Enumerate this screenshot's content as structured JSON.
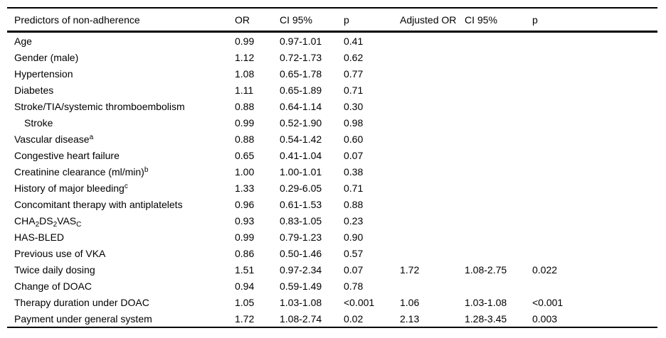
{
  "table": {
    "headers": [
      "Predictors of non-adherence",
      "OR",
      "CI 95%",
      "p",
      "Adjusted OR",
      "CI 95%",
      "p"
    ],
    "rows": [
      {
        "label": "Age",
        "or": "0.99",
        "ci": "0.97-1.01",
        "p": "0.41",
        "adj_or": "",
        "adj_ci": "",
        "adj_p": ""
      },
      {
        "label": "Gender (male)",
        "or": "1.12",
        "ci": "0.72-1.73",
        "p": "0.62",
        "adj_or": "",
        "adj_ci": "",
        "adj_p": ""
      },
      {
        "label": "Hypertension",
        "or": "1.08",
        "ci": "0.65-1.78",
        "p": "0.77",
        "adj_or": "",
        "adj_ci": "",
        "adj_p": ""
      },
      {
        "label": "Diabetes",
        "or": "1.11",
        "ci": "0.65-1.89",
        "p": "0.71",
        "adj_or": "",
        "adj_ci": "",
        "adj_p": ""
      },
      {
        "label": "Stroke/TIA/systemic thromboembolism",
        "or": "0.88",
        "ci": "0.64-1.14",
        "p": "0.30",
        "adj_or": "",
        "adj_ci": "",
        "adj_p": ""
      },
      {
        "label": "Stroke",
        "indent": true,
        "or": "0.99",
        "ci": "0.52-1.90",
        "p": "0.98",
        "adj_or": "",
        "adj_ci": "",
        "adj_p": ""
      },
      {
        "label_parts": [
          {
            "t": "Vascular disease"
          },
          {
            "sup": "a"
          }
        ],
        "or": "0.88",
        "ci": "0.54-1.42",
        "p": "0.60",
        "adj_or": "",
        "adj_ci": "",
        "adj_p": ""
      },
      {
        "label": "Congestive heart failure",
        "or": "0.65",
        "ci": "0.41-1.04",
        "p": "0.07",
        "adj_or": "",
        "adj_ci": "",
        "adj_p": ""
      },
      {
        "label_parts": [
          {
            "t": "Creatinine clearance (ml/min)"
          },
          {
            "sup": "b"
          }
        ],
        "or": "1.00",
        "ci": "1.00-1.01",
        "p": "0.38",
        "adj_or": "",
        "adj_ci": "",
        "adj_p": ""
      },
      {
        "label_parts": [
          {
            "t": "History of major bleeding"
          },
          {
            "sup": "c"
          }
        ],
        "or": "1.33",
        "ci": "0.29-6.05",
        "p": "0.71",
        "adj_or": "",
        "adj_ci": "",
        "adj_p": ""
      },
      {
        "label": "Concomitant therapy with antiplatelets",
        "or": "0.96",
        "ci": "0.61-1.53",
        "p": "0.88",
        "adj_or": "",
        "adj_ci": "",
        "adj_p": ""
      },
      {
        "label_parts": [
          {
            "t": "CHA"
          },
          {
            "sub": "2"
          },
          {
            "t": "DS"
          },
          {
            "sub": "2"
          },
          {
            "t": "VAS"
          },
          {
            "sub": "C"
          }
        ],
        "or": "0.93",
        "ci": "0.83-1.05",
        "p": "0.23",
        "adj_or": "",
        "adj_ci": "",
        "adj_p": ""
      },
      {
        "label": "HAS-BLED",
        "or": "0.99",
        "ci": "0.79-1.23",
        "p": "0.90",
        "adj_or": "",
        "adj_ci": "",
        "adj_p": ""
      },
      {
        "label": "Previous use of VKA",
        "or": "0.86",
        "ci": "0.50-1.46",
        "p": "0.57",
        "adj_or": "",
        "adj_ci": "",
        "adj_p": ""
      },
      {
        "label": "Twice daily dosing",
        "or": "1.51",
        "ci": "0.97-2.34",
        "p": "0.07",
        "adj_or": "1.72",
        "adj_ci": "1.08-2.75",
        "adj_p": "0.022"
      },
      {
        "label": "Change of DOAC",
        "or": "0.94",
        "ci": "0.59-1.49",
        "p": "0.78",
        "adj_or": "",
        "adj_ci": "",
        "adj_p": ""
      },
      {
        "label": "Therapy duration under DOAC",
        "or": "1.05",
        "ci": "1.03-1.08",
        "p": "<0.001",
        "adj_or": "1.06",
        "adj_ci": "1.03-1.08",
        "adj_p": "<0.001"
      },
      {
        "label": "Payment under general system",
        "or": "1.72",
        "ci": "1.08-2.74",
        "p": "0.02",
        "adj_or": "2.13",
        "adj_ci": "1.28-3.45",
        "adj_p": "0.003"
      }
    ]
  }
}
